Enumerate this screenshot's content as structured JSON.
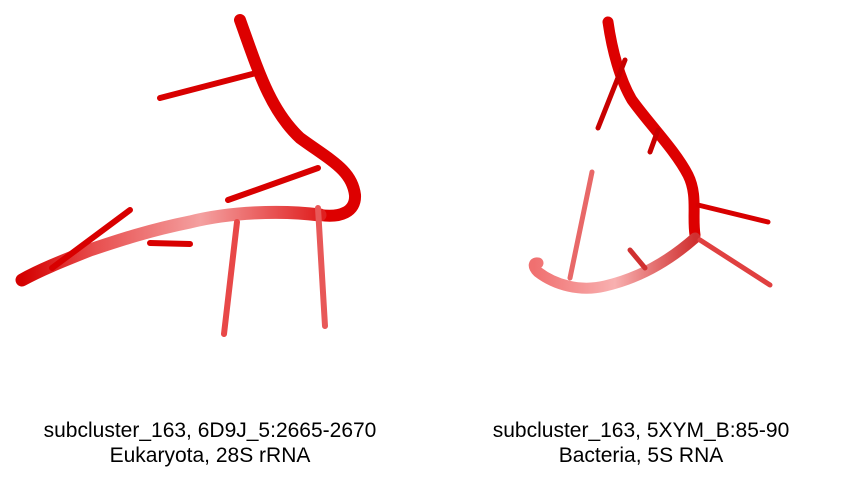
{
  "colors": {
    "strand": "#e00000",
    "strand_faded": "#f08080",
    "background": "#ffffff"
  },
  "panels": [
    {
      "id_line": "subcluster_163, 6D9J_5:2665-2670",
      "taxon_line": "Eukaryota, 28S rRNA"
    },
    {
      "id_line": "subcluster_163, 5XYM_B:85-90",
      "taxon_line": "Bacteria, 5S RNA"
    }
  ]
}
